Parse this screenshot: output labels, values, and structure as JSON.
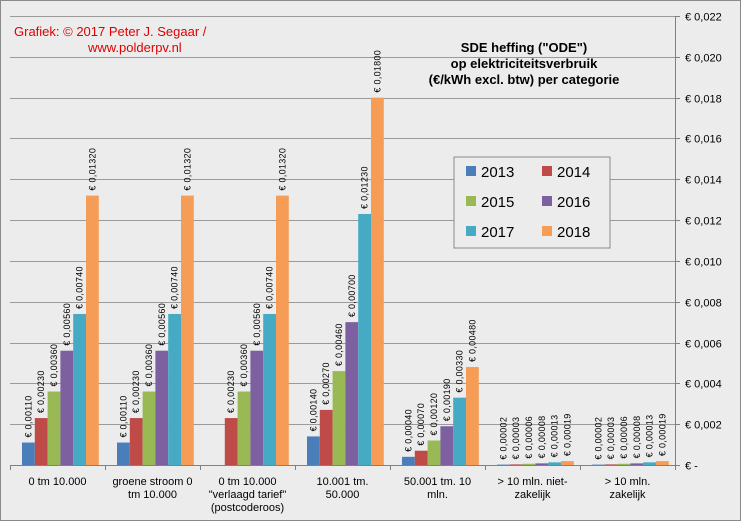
{
  "credit": {
    "line1": "Grafiek:  © 2017 Peter J. Segaar /",
    "line2": "www.polderpv.nl"
  },
  "chart_data": {
    "type": "bar",
    "title": [
      "SDE heffing (\"ODE\")",
      "op elektriciteitsverbruik",
      "(€/kWh excl. btw) per categorie"
    ],
    "categories": [
      [
        "0 tm 10.000"
      ],
      [
        "groene stroom 0",
        "tm 10.000"
      ],
      [
        "0 tm 10.000",
        "\"verlaagd tarief\"",
        "(postcoderoos)"
      ],
      [
        "10.001 tm.",
        "50.000"
      ],
      [
        "50.001 tm. 10",
        "mln."
      ],
      [
        "> 10 mln. niet-",
        "zakelijk"
      ],
      [
        "> 10 mln.",
        "zakelijk"
      ]
    ],
    "series": [
      {
        "name": "2013",
        "color": "#4a7ebb",
        "values": [
          0.0011,
          0.0011,
          0,
          0.0014,
          0.0004,
          2e-05,
          2e-05
        ],
        "labels": [
          "€ 0,00110",
          "€ 0,00110",
          "",
          "€ 0,00140",
          "€ 0,00040",
          "€ 0,00002",
          "€ 0,00002"
        ]
      },
      {
        "name": "2014",
        "color": "#be4b48",
        "values": [
          0.0023,
          0.0023,
          0.0023,
          0.0027,
          0.0007,
          3e-05,
          3e-05
        ],
        "labels": [
          "€ 0,00230",
          "€ 0,00230",
          "€ 0,00230",
          "€ 0,00270",
          "€ 0,00070",
          "€ 0,00003",
          "€ 0,00003"
        ]
      },
      {
        "name": "2015",
        "color": "#98b954",
        "values": [
          0.0036,
          0.0036,
          0.0036,
          0.0046,
          0.0012,
          6e-05,
          6e-05
        ],
        "labels": [
          "€ 0,00360",
          "€ 0,00360",
          "€ 0,00360",
          "€ 0,00460",
          "€ 0,00120",
          "€ 0,00006",
          "€ 0,00006"
        ]
      },
      {
        "name": "2016",
        "color": "#7d60a0",
        "values": [
          0.0056,
          0.0056,
          0.0056,
          0.007,
          0.0019,
          8e-05,
          8e-05
        ],
        "labels": [
          "€ 0,00560",
          "€ 0,00560",
          "€ 0,00560",
          "€ 0,00700",
          "€ 0,00190",
          "€ 0,00008",
          "€ 0,00008"
        ]
      },
      {
        "name": "2017",
        "color": "#46aac5",
        "values": [
          0.0074,
          0.0074,
          0.0074,
          0.0123,
          0.0033,
          0.00013,
          0.00013
        ],
        "labels": [
          "€ 0,00740",
          "€ 0,00740",
          "€ 0,00740",
          "€ 0,01230",
          "€ 0,00330",
          "€ 0,00013",
          "€ 0,00013"
        ]
      },
      {
        "name": "2018",
        "color": "#f59d56",
        "values": [
          0.0132,
          0.0132,
          0.0132,
          0.018,
          0.0048,
          0.00019,
          0.00019
        ],
        "labels": [
          "€ 0,01320",
          "€ 0,01320",
          "€ 0,01320",
          "€ 0,01800",
          "€ 0,00480",
          "€ 0,00019",
          "€ 0,00019"
        ]
      }
    ],
    "ylim": [
      0,
      0.022
    ],
    "yticks": [
      0,
      0.002,
      0.004,
      0.006,
      0.008,
      0.01,
      0.012,
      0.014,
      0.016,
      0.018,
      0.02,
      0.022
    ],
    "ytick_labels": [
      "€ -",
      "€ 0,002",
      "€ 0,004",
      "€ 0,006",
      "€ 0,008",
      "€ 0,010",
      "€ 0,012",
      "€ 0,014",
      "€ 0,016",
      "€ 0,018",
      "€ 0,020",
      "€ 0,022"
    ],
    "y_axis_side": "right",
    "grid": true,
    "legend_position": "center-right"
  }
}
